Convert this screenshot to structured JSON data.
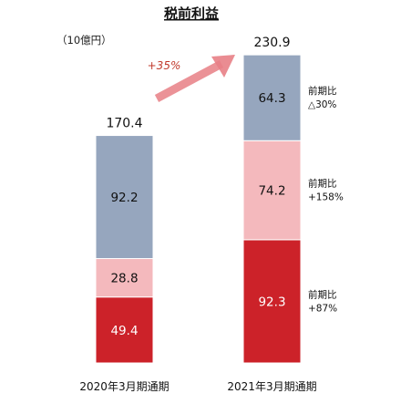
{
  "chart_data": {
    "type": "bar",
    "stacked": true,
    "title": "税前利益",
    "unit_label": "（10億円）",
    "categories": [
      "2020年3月期通期",
      "2021年3月期通期"
    ],
    "series": [
      {
        "values": [
          49.4,
          92.3
        ],
        "color": "#cc2229",
        "label_color": "#ffffff"
      },
      {
        "values": [
          28.8,
          74.2
        ],
        "color": "#f4b9bd",
        "label_color": "#111111"
      },
      {
        "values": [
          92.2,
          64.3
        ],
        "color": "#96a6be",
        "label_color": "#111111"
      }
    ],
    "totals": [
      "170.4",
      "230.9"
    ],
    "value_labels": [
      [
        "49.4",
        "92.3"
      ],
      [
        "28.8",
        "74.2"
      ],
      [
        "92.2",
        "64.3"
      ]
    ],
    "comparisons": [
      {
        "label": "前期比",
        "value": "+87%"
      },
      {
        "label": "前期比",
        "value": "+158%"
      },
      {
        "label": "前期比",
        "value": "△30%"
      }
    ],
    "growth": {
      "label": "+35%",
      "color": "#e87f86"
    },
    "ylim": [
      0,
      230.9
    ]
  }
}
